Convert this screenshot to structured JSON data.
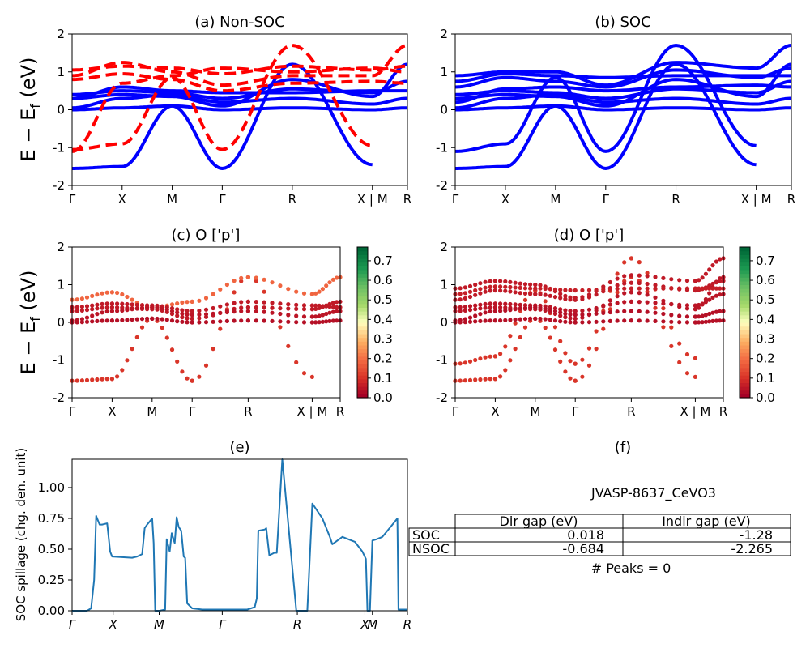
{
  "structure": "JVASP-8637_CeVO3",
  "kpath_labels": [
    "Γ",
    "X",
    "M",
    "Γ",
    "R",
    "X | M",
    "R"
  ],
  "energy_ylabel_left": "E − E",
  "energy_ylabel_sub": "f",
  "energy_ylabel_right": " (eV)",
  "spillage_ylabel": "SOC spillage (chg. den. unit)",
  "colorbar_ticks": [
    "0.0",
    "0.1",
    "0.2",
    "0.3",
    "0.4",
    "0.5",
    "0.6",
    "0.7"
  ],
  "table": {
    "col_headers": [
      "Dir gap (eV)",
      "Indir gap (eV)"
    ],
    "rows": [
      {
        "label": "SOC",
        "dir": "0.018",
        "indir": "-1.28"
      },
      {
        "label": "NSOC",
        "dir": "-0.684",
        "indir": "-2.265"
      }
    ],
    "peaks": "# Peaks = 0"
  },
  "colors": {
    "non_soc_up": "#0000ff",
    "non_soc_down": "#ff0000",
    "soc": "#0000ff",
    "spillage": "#1f77b4"
  },
  "chart_data": [
    {
      "id": "a",
      "type": "line",
      "title": "(a) Non-SOC",
      "ylim": [
        -2,
        2
      ],
      "yticks": [
        -2,
        -1,
        0,
        1,
        2
      ],
      "x": [
        0,
        1,
        2,
        3,
        4.4,
        6,
        6.7
      ],
      "series": [
        {
          "style": "solid",
          "values": [
            -1.55,
            -1.5,
            0.1,
            -1.55,
            1.2,
            -1.45,
            null
          ]
        },
        {
          "style": "solid",
          "values": [
            0.3,
            0.4,
            0.35,
            0.1,
            0.8,
            0.35,
            1.2
          ]
        },
        {
          "style": "solid",
          "values": [
            0.4,
            0.5,
            0.45,
            0.3,
            0.55,
            0.45,
            0.75
          ]
        },
        {
          "style": "solid",
          "values": [
            0.05,
            0.3,
            0.4,
            0.2,
            0.3,
            0.15,
            0.3
          ]
        },
        {
          "style": "solid",
          "values": [
            0.0,
            0.05,
            0.1,
            0.0,
            0.05,
            0.0,
            0.05
          ]
        },
        {
          "style": "solid",
          "values": [
            0.3,
            0.6,
            0.5,
            0.45,
            0.45,
            0.5,
            0.5
          ]
        },
        {
          "style": "dashed",
          "values": [
            -1.05,
            -0.9,
            0.85,
            -1.05,
            1.7,
            -0.95,
            null
          ]
        },
        {
          "style": "dashed",
          "values": [
            0.9,
            1.25,
            1.0,
            0.65,
            0.9,
            0.9,
            1.7
          ]
        },
        {
          "style": "dashed",
          "values": [
            1.05,
            1.15,
            1.1,
            0.95,
            1.15,
            1.05,
            1.15
          ]
        },
        {
          "style": "dashed",
          "values": [
            0.8,
            0.95,
            0.8,
            0.5,
            0.7,
            0.75,
            0.7
          ]
        },
        {
          "style": "dashed",
          "values": [
            -1.1,
            0.7,
            0.9,
            1.1,
            1.0,
            1.1,
            1.0
          ]
        }
      ]
    },
    {
      "id": "b",
      "type": "line",
      "title": "(b) SOC",
      "ylim": [
        -2,
        2
      ],
      "yticks": [
        -2,
        -1,
        0,
        1,
        2
      ],
      "x": [
        0,
        1,
        2,
        3,
        4.4,
        6,
        6.7
      ],
      "series": [
        {
          "values": [
            -1.55,
            -1.5,
            0.1,
            -1.55,
            1.2,
            -1.45,
            null
          ]
        },
        {
          "values": [
            -1.1,
            -0.9,
            0.85,
            -1.1,
            1.7,
            -0.95,
            null
          ]
        },
        {
          "values": [
            0.9,
            1.0,
            1.0,
            0.65,
            1.25,
            1.1,
            1.7
          ]
        },
        {
          "values": [
            0.3,
            0.4,
            0.35,
            0.1,
            0.8,
            0.35,
            1.2
          ]
        },
        {
          "values": [
            0.4,
            0.5,
            0.45,
            0.3,
            0.55,
            0.45,
            0.75
          ]
        },
        {
          "values": [
            0.6,
            0.85,
            0.75,
            0.6,
            1.05,
            0.85,
            1.1
          ]
        },
        {
          "values": [
            0.05,
            0.3,
            0.4,
            0.2,
            0.3,
            0.15,
            0.3
          ]
        },
        {
          "values": [
            0.0,
            0.05,
            0.1,
            0.0,
            0.05,
            0.0,
            0.05
          ]
        },
        {
          "values": [
            0.75,
            0.95,
            0.9,
            0.85,
            0.9,
            0.9,
            0.9
          ]
        },
        {
          "values": [
            0.2,
            0.55,
            0.6,
            0.5,
            0.6,
            0.65,
            0.6
          ]
        }
      ]
    },
    {
      "id": "c",
      "type": "scatter",
      "title": "(c)  O ['p']",
      "ylim": [
        -2,
        2
      ],
      "yticks": [
        -2,
        -1,
        0,
        1,
        2
      ],
      "colorbar": [
        0,
        0.77
      ],
      "x": [
        0,
        1,
        2,
        3,
        4.4,
        6,
        6.7
      ],
      "series": [
        {
          "weight": 0.1,
          "values": [
            -1.55,
            -1.5,
            0.1,
            -1.55,
            1.2,
            -1.45,
            null
          ]
        },
        {
          "weight": 0.18,
          "values": [
            0.6,
            0.8,
            0.4,
            0.55,
            1.2,
            0.75,
            1.2
          ]
        },
        {
          "weight": 0.05,
          "values": [
            0.3,
            0.4,
            0.35,
            0.1,
            0.4,
            0.35,
            0.55
          ]
        },
        {
          "weight": 0.05,
          "values": [
            0.4,
            0.5,
            0.45,
            0.3,
            0.55,
            0.45,
            0.4
          ]
        },
        {
          "weight": 0.04,
          "values": [
            0.05,
            0.3,
            0.4,
            0.2,
            0.3,
            0.15,
            0.3
          ]
        },
        {
          "weight": 0.03,
          "values": [
            0.0,
            0.05,
            0.1,
            0.0,
            0.05,
            0.0,
            0.05
          ]
        }
      ]
    },
    {
      "id": "d",
      "type": "scatter",
      "title": "(d) O ['p']",
      "ylim": [
        -2,
        2
      ],
      "yticks": [
        -2,
        -1,
        0,
        1,
        2
      ],
      "colorbar": [
        0,
        0.77
      ],
      "x": [
        0,
        1,
        2,
        3,
        4.4,
        6,
        6.7
      ],
      "series": [
        {
          "weight": 0.1,
          "values": [
            -1.55,
            -1.5,
            0.1,
            -1.55,
            1.2,
            -1.45,
            null
          ]
        },
        {
          "weight": 0.1,
          "values": [
            -1.1,
            -0.9,
            0.85,
            -1.1,
            1.7,
            -0.95,
            null
          ]
        },
        {
          "weight": 0.05,
          "values": [
            0.9,
            1.1,
            1.0,
            0.65,
            1.25,
            1.1,
            1.7
          ]
        },
        {
          "weight": 0.04,
          "values": [
            0.3,
            0.4,
            0.35,
            0.1,
            0.8,
            0.35,
            1.2
          ]
        },
        {
          "weight": 0.04,
          "values": [
            0.4,
            0.5,
            0.45,
            0.3,
            0.55,
            0.45,
            0.75
          ]
        },
        {
          "weight": 0.05,
          "values": [
            0.6,
            0.85,
            0.75,
            0.6,
            1.05,
            0.85,
            1.1
          ]
        },
        {
          "weight": 0.03,
          "values": [
            0.05,
            0.3,
            0.4,
            0.2,
            0.3,
            0.15,
            0.3
          ]
        },
        {
          "weight": 0.03,
          "values": [
            0.0,
            0.05,
            0.1,
            0.0,
            0.05,
            0.0,
            0.05
          ]
        },
        {
          "weight": 0.06,
          "values": [
            0.75,
            0.95,
            0.9,
            0.85,
            0.9,
            0.9,
            0.9
          ]
        }
      ]
    },
    {
      "id": "e",
      "type": "line",
      "title": "(e)",
      "ylim": [
        0,
        1.23
      ],
      "yticks": [
        0.0,
        0.25,
        0.5,
        0.75,
        1.0
      ],
      "ytick_labels": [
        "0.00",
        "0.25",
        "0.50",
        "0.75",
        "1.00"
      ],
      "xlim": [
        0,
        6.7
      ],
      "xticks": [
        0,
        0.82,
        1.74,
        3.0,
        4.5,
        5.85,
        6.0,
        6.7
      ],
      "xtick_labels": [
        "Γ",
        "X",
        "M",
        "Γ",
        "R",
        "X",
        "M",
        "R"
      ],
      "x": [
        0,
        0.3,
        0.38,
        0.44,
        0.48,
        0.5,
        0.55,
        0.6,
        0.7,
        0.76,
        0.8,
        1.2,
        1.3,
        1.4,
        1.45,
        1.5,
        1.6,
        1.63,
        1.66,
        1.75,
        1.86,
        1.89,
        1.95,
        1.99,
        2.05,
        2.09,
        2.13,
        2.18,
        2.23,
        2.26,
        2.3,
        2.4,
        2.6,
        3.0,
        3.5,
        3.65,
        3.69,
        3.72,
        3.85,
        3.88,
        3.94,
        4.04,
        4.09,
        4.2,
        4.48,
        4.54,
        4.58,
        4.7,
        4.8,
        5.0,
        5.15,
        5.2,
        5.4,
        5.65,
        5.8,
        5.87,
        5.9,
        5.95,
        6.0,
        6.08,
        6.2,
        6.4,
        6.5,
        6.52,
        6.7
      ],
      "y": [
        0.0,
        0.0,
        0.02,
        0.25,
        0.77,
        0.75,
        0.7,
        0.7,
        0.71,
        0.48,
        0.44,
        0.43,
        0.44,
        0.46,
        0.67,
        0.7,
        0.75,
        0.55,
        0.0,
        0.0,
        0.01,
        0.58,
        0.48,
        0.63,
        0.55,
        0.76,
        0.68,
        0.65,
        0.44,
        0.43,
        0.06,
        0.02,
        0.01,
        0.01,
        0.01,
        0.03,
        0.1,
        0.65,
        0.66,
        0.67,
        0.45,
        0.47,
        0.47,
        1.23,
        0.0,
        0.0,
        0.0,
        0.0,
        0.87,
        0.75,
        0.6,
        0.54,
        0.6,
        0.56,
        0.48,
        0.42,
        0.0,
        0.0,
        0.57,
        0.58,
        0.6,
        0.7,
        0.75,
        0.01,
        0.01
      ]
    }
  ]
}
